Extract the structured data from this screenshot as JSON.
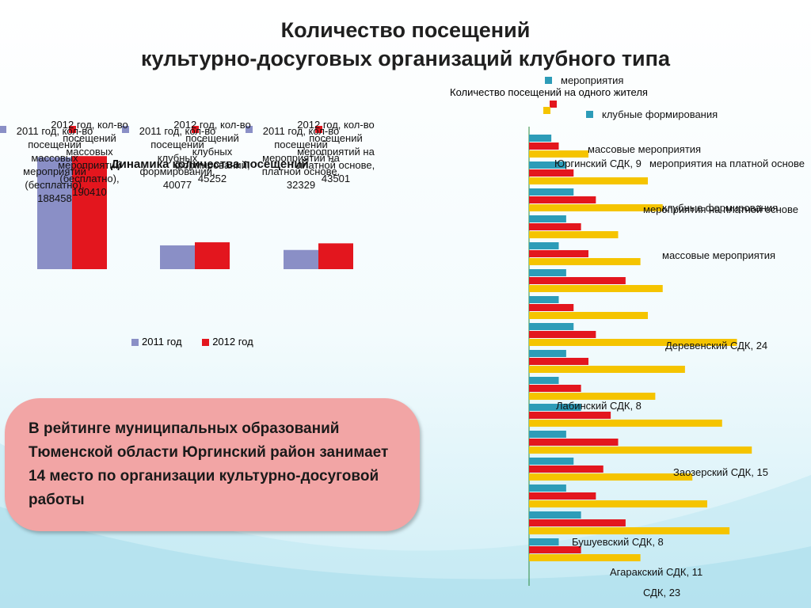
{
  "title": {
    "line1": "Количество посещений",
    "line2": "культурно-досуговых организаций клубного типа"
  },
  "colors": {
    "y2011": "#8a8fc6",
    "y2012": "#e3161e",
    "teal": "#2d9cb8",
    "orange": "#f5c400"
  },
  "chart_data": [
    {
      "type": "bar",
      "title": "Динамика количества посещений",
      "categories": [
        "кол-во посещений массовых мероприятий (бесплатно)",
        "кол-во посещений клубных формирований",
        "кол-во посещений мероприятий на платной основе"
      ],
      "series": [
        {
          "name": "2011 год",
          "values": [
            188458,
            40077,
            32329
          ]
        },
        {
          "name": "2012 год",
          "values": [
            190410,
            45252,
            43501
          ]
        }
      ],
      "data_labels": [
        [
          "2011 год, кол-во посещений массовых мероприятий (бесплатно), 188458",
          "2012 год, кол-во посещений массовых мероприятий (бесплатно), 190410"
        ],
        [
          "2011 год, кол-во посещений клубных формирований, 40077",
          "2012 год, кол-во посещений клубных формирований, 45252"
        ],
        [
          "2011 год, кол-во посещений мероприятий на платной основе, 32329",
          "2012 год, кол-во посещений мероприятий на платной основе, 43501"
        ]
      ],
      "legend": [
        "2011 год",
        "2012 год"
      ],
      "legend_position": "bottom",
      "ylim": [
        0,
        200000
      ]
    },
    {
      "type": "bar",
      "orientation": "horizontal",
      "title": "Количество посещений на одного жителя",
      "legend": [
        "мероприятия",
        "клубные формирования",
        "массовые мероприятия",
        "мероприятия на платной основе"
      ],
      "overlapping_labels": [
        "Юргинский СДК, 9",
        "мероприятия на платной основе",
        "клубные формирования",
        "массовые мероприятия",
        "Деревенский СДК, 24",
        "Лабинский СДК, 8",
        "Заозерский СДК, 15",
        "Бушуевский СДК, 8",
        "Агаракский СДК, 11",
        "СДК, 23"
      ],
      "rows": [
        {
          "teal": 0.3,
          "red": 0.4,
          "orange": 0.8
        },
        {
          "teal": 0.5,
          "red": 0.6,
          "orange": 1.6
        },
        {
          "teal": 0.6,
          "red": 0.9,
          "orange": 1.8
        },
        {
          "teal": 0.5,
          "red": 0.7,
          "orange": 1.2
        },
        {
          "teal": 0.4,
          "red": 0.8,
          "orange": 1.5
        },
        {
          "teal": 0.5,
          "red": 1.3,
          "orange": 1.8
        },
        {
          "teal": 0.4,
          "red": 0.6,
          "orange": 1.6
        },
        {
          "teal": 0.6,
          "red": 0.9,
          "orange": 2.8
        },
        {
          "teal": 0.5,
          "red": 0.8,
          "orange": 2.1
        },
        {
          "teal": 0.4,
          "red": 0.7,
          "orange": 1.7
        },
        {
          "teal": 0.7,
          "red": 1.1,
          "orange": 2.6
        },
        {
          "teal": 0.5,
          "red": 1.2,
          "orange": 3.0
        },
        {
          "teal": 0.6,
          "red": 1.0,
          "orange": 2.2
        },
        {
          "teal": 0.5,
          "red": 0.9,
          "orange": 2.4
        },
        {
          "teal": 0.7,
          "red": 1.3,
          "orange": 2.7
        },
        {
          "teal": 0.4,
          "red": 0.7,
          "orange": 1.5
        }
      ],
      "xlim": [
        0,
        3.2
      ]
    }
  ],
  "callout": {
    "text": "В рейтинге муниципальных образований Тюменской области Юргинский район занимает 14 место по организации культурно-досуговой работы"
  }
}
